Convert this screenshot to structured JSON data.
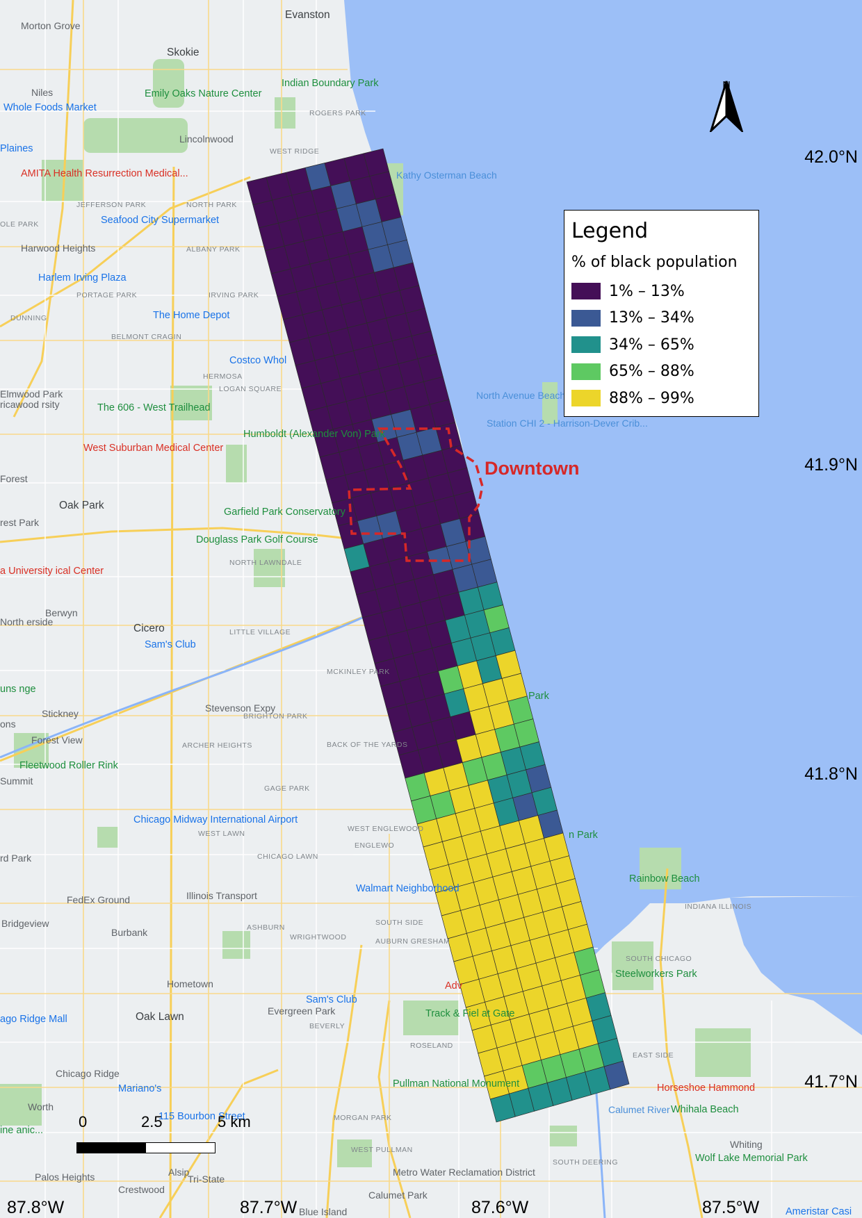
{
  "map": {
    "legend": {
      "title": "Legend",
      "subtitle": "% of black population",
      "classes": [
        {
          "label": "1% – 13%",
          "color": "#440f57"
        },
        {
          "label": "13% – 34%",
          "color": "#3b5994"
        },
        {
          "label": "34% – 65%",
          "color": "#21918c"
        },
        {
          "label": "65% – 88%",
          "color": "#5ec962"
        },
        {
          "label": "88% – 99%",
          "color": "#ecd52a"
        }
      ]
    },
    "downtown_label": "Downtown",
    "north_label": "N",
    "lat_labels": [
      "42.0°N",
      "41.9°N",
      "41.8°N",
      "41.7°N"
    ],
    "lon_labels": [
      "87.8°W",
      "87.7°W",
      "87.6°W",
      "87.5°W"
    ],
    "scale": {
      "labels": [
        "0",
        "2.5",
        "5 km"
      ]
    },
    "grid_values": [
      "0001000",
      "0000100",
      "0000110",
      "0000011",
      "0000011",
      "0000000",
      "0000000",
      "0000000",
      "0000000",
      "0000000",
      "0000000",
      "0001100",
      "0000110",
      "0000000",
      "0000000",
      "0110000",
      "2000010",
      "0000111",
      "0000011",
      "0000022",
      "0000223",
      "0000222",
      "0003424",
      "0002444",
      "0000443",
      "0004433",
      "3443322",
      "3344221",
      "4444212",
      "4444441",
      "4444444",
      "4444444",
      "4444444",
      "4444444",
      "4444444",
      "4444443",
      "4444443",
      "4444442",
      "4444442",
      "4433332",
      "2222221"
    ],
    "places": [
      {
        "t": "Evanston",
        "c": "big"
      },
      {
        "t": "Morton Grove",
        "c": ""
      },
      {
        "t": "Skokie",
        "c": "big"
      },
      {
        "t": "Niles",
        "c": ""
      },
      {
        "t": "Indian Boundary Park",
        "c": "park"
      },
      {
        "t": "Emily Oaks Nature Center",
        "c": "park"
      },
      {
        "t": "Whole Foods Market",
        "c": "poi"
      },
      {
        "t": "ROGERS PARK",
        "c": "small"
      },
      {
        "t": "Lincolnwood",
        "c": ""
      },
      {
        "t": "WEST RIDGE",
        "c": "small"
      },
      {
        "t": "Kathy Osterman Beach",
        "c": "water"
      },
      {
        "t": "AMITA Health Resurrection Medical...",
        "c": "hosp"
      },
      {
        "t": "JEFFERSON PARK",
        "c": "small"
      },
      {
        "t": "NORTH PARK",
        "c": "small"
      },
      {
        "t": "Seafood City Supermarket",
        "c": "poi"
      },
      {
        "t": "ALBANY PARK",
        "c": "small"
      },
      {
        "t": "Harwood Heights",
        "c": ""
      },
      {
        "t": "Harlem Irving Plaza",
        "c": "poi"
      },
      {
        "t": "PORTAGE PARK",
        "c": "small"
      },
      {
        "t": "IRVING PARK",
        "c": "small"
      },
      {
        "t": "The Home Depot",
        "c": "poi"
      },
      {
        "t": "DUNNING",
        "c": "small"
      },
      {
        "t": "BELMONT CRAGIN",
        "c": "small"
      },
      {
        "t": "Costco Whol",
        "c": "poi"
      },
      {
        "t": "HERMOSA",
        "c": "small"
      },
      {
        "t": "LOGAN SQUARE",
        "c": "small"
      },
      {
        "t": "Elmwood Park",
        "c": ""
      },
      {
        "t": "The 606 - West Trailhead",
        "c": "park"
      },
      {
        "t": "North Avenue Beach",
        "c": "water"
      },
      {
        "t": "Station CHI 2 - Harrison-Dever Crib...",
        "c": "water"
      },
      {
        "t": "West Suburban Medical Center",
        "c": "hosp"
      },
      {
        "t": "Humboldt (Alexander Von) Park",
        "c": "park"
      },
      {
        "t": "Forest",
        "c": ""
      },
      {
        "t": "Oak Park",
        "c": "big"
      },
      {
        "t": "Garfield Park Conservatory",
        "c": "park"
      },
      {
        "t": "rest Park",
        "c": ""
      },
      {
        "t": "Douglass Park Golf Course",
        "c": "park"
      },
      {
        "t": "NORTH LAWNDALE",
        "c": "small"
      },
      {
        "t": "a University ical Center",
        "c": "hosp"
      },
      {
        "t": "Berwyn",
        "c": ""
      },
      {
        "t": "Cicero",
        "c": "big"
      },
      {
        "t": "Sam's Club",
        "c": "poi"
      },
      {
        "t": "LITTLE VILLAGE",
        "c": "small"
      },
      {
        "t": "North erside",
        "c": ""
      },
      {
        "t": "MCKINLEY PARK",
        "c": "small"
      },
      {
        "t": "Stevenson Expy",
        "c": ""
      },
      {
        "t": "Stickney",
        "c": ""
      },
      {
        "t": "BRIGHTON PARK",
        "c": "small"
      },
      {
        "t": "Forest View",
        "c": ""
      },
      {
        "t": "ARCHER HEIGHTS",
        "c": "small"
      },
      {
        "t": "BACK OF THE YARDS",
        "c": "small"
      },
      {
        "t": "Fleetwood Roller Rink",
        "c": "park"
      },
      {
        "t": "GAGE PARK",
        "c": "small"
      },
      {
        "t": "Summit",
        "c": ""
      },
      {
        "t": "Chicago Midway International Airport",
        "c": "poi"
      },
      {
        "t": "WEST LAWN",
        "c": "small"
      },
      {
        "t": "WEST ENGLEWOOD",
        "c": "small"
      },
      {
        "t": "ENGLEWO",
        "c": "small"
      },
      {
        "t": "CHICAGO LAWN",
        "c": "small"
      },
      {
        "t": "Rainbow Beach",
        "c": "park"
      },
      {
        "t": "FedEx Ground",
        "c": ""
      },
      {
        "t": "Illinois Transport",
        "c": ""
      },
      {
        "t": "Walmart Neighborhood",
        "c": "poi"
      },
      {
        "t": "Bridgeview",
        "c": ""
      },
      {
        "t": "Burbank",
        "c": ""
      },
      {
        "t": "ASHBURN",
        "c": "small"
      },
      {
        "t": "SOUTH SIDE",
        "c": "small"
      },
      {
        "t": "WRIGHTWOOD",
        "c": "small"
      },
      {
        "t": "AUBURN GRESHAM",
        "c": "small"
      },
      {
        "t": "INDIANA ILLINOIS",
        "c": "small"
      },
      {
        "t": "SOUTH CHICAGO",
        "c": "small"
      },
      {
        "t": "Steelworkers Park",
        "c": "park"
      },
      {
        "t": "Hometown",
        "c": ""
      },
      {
        "t": "Sam's Club",
        "c": "poi"
      },
      {
        "t": "Oak Lawn",
        "c": "big"
      },
      {
        "t": "Evergreen Park",
        "c": ""
      },
      {
        "t": "BEVERLY",
        "c": "small"
      },
      {
        "t": "Track & Fiel at Gate",
        "c": "park"
      },
      {
        "t": "ago Ridge Mall",
        "c": "poi"
      },
      {
        "t": "ROSELAND",
        "c": "small"
      },
      {
        "t": "EAST SIDE",
        "c": "small"
      },
      {
        "t": "Chicago Ridge",
        "c": ""
      },
      {
        "t": "Pullman National Monument",
        "c": "park"
      },
      {
        "t": "Horseshoe Hammond",
        "c": "hosp"
      },
      {
        "t": "Mariano's",
        "c": "poi"
      },
      {
        "t": "Whihala Beach",
        "c": "park"
      },
      {
        "t": "Worth",
        "c": ""
      },
      {
        "t": "115 Bourbon Street",
        "c": "poi"
      },
      {
        "t": "MORGAN PARK",
        "c": "small"
      },
      {
        "t": "Whiting",
        "c": ""
      },
      {
        "t": "WEST PULLMAN",
        "c": "small"
      },
      {
        "t": "SOUTH DEERING",
        "c": "small"
      },
      {
        "t": "Wolf Lake Memorial Park",
        "c": "park"
      },
      {
        "t": "Palos Heights",
        "c": ""
      },
      {
        "t": "Alsip",
        "c": ""
      },
      {
        "t": "Metro Water Reclamation District",
        "c": ""
      },
      {
        "t": "Crestwood",
        "c": ""
      },
      {
        "t": "Calumet Park",
        "c": ""
      },
      {
        "t": "Blue Island",
        "c": ""
      },
      {
        "t": "Ameristar Casi",
        "c": "poi"
      },
      {
        "t": "Plaines",
        "c": "poi"
      },
      {
        "t": "OLE PARK",
        "c": "small"
      },
      {
        "t": "ricawood rsity",
        "c": ""
      },
      {
        "t": "uns nge",
        "c": "park"
      },
      {
        "t": "ons",
        "c": ""
      },
      {
        "t": "rd Park",
        "c": ""
      },
      {
        "t": "Adv",
        "c": "hosp"
      },
      {
        "t": "Park",
        "c": "park"
      },
      {
        "t": "n Park",
        "c": "park"
      },
      {
        "t": "ine anic...",
        "c": "park"
      },
      {
        "t": "Calumet River",
        "c": "water"
      },
      {
        "t": "Tri-State",
        "c": ""
      }
    ]
  }
}
